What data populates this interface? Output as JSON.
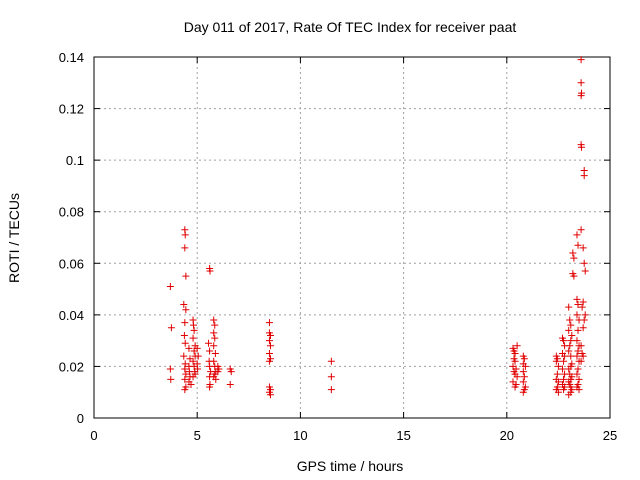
{
  "chart_data": {
    "type": "scatter",
    "title": "Day 011 of 2017, Rate Of TEC Index for receiver paat",
    "xlabel": "GPS time / hours",
    "ylabel": "ROTI / TECUs",
    "xlim": [
      0,
      25
    ],
    "ylim": [
      0,
      0.14
    ],
    "xticks": [
      0,
      5,
      10,
      15,
      20,
      25
    ],
    "xtick_labels": [
      "0",
      "5",
      "10",
      "15",
      "20",
      "25"
    ],
    "yticks": [
      0,
      0.02,
      0.04,
      0.06,
      0.08,
      0.1,
      0.12,
      0.14
    ],
    "ytick_labels": [
      "0",
      "0.02",
      "0.04",
      "0.06",
      "0.08",
      "0.1",
      "0.12",
      "0.14"
    ],
    "grid": true,
    "marker": "+",
    "color": "#e00000",
    "points": [
      [
        3.7,
        0.051
      ],
      [
        3.75,
        0.035
      ],
      [
        3.7,
        0.019
      ],
      [
        3.72,
        0.015
      ],
      [
        4.4,
        0.073
      ],
      [
        4.42,
        0.071
      ],
      [
        4.4,
        0.066
      ],
      [
        4.45,
        0.055
      ],
      [
        4.35,
        0.044
      ],
      [
        4.45,
        0.042
      ],
      [
        4.4,
        0.037
      ],
      [
        4.38,
        0.032
      ],
      [
        4.42,
        0.029
      ],
      [
        4.35,
        0.024
      ],
      [
        4.42,
        0.021
      ],
      [
        4.4,
        0.019
      ],
      [
        4.45,
        0.017
      ],
      [
        4.4,
        0.015
      ],
      [
        4.45,
        0.012
      ],
      [
        4.4,
        0.011
      ],
      [
        4.6,
        0.027
      ],
      [
        4.65,
        0.023
      ],
      [
        4.6,
        0.02
      ],
      [
        4.62,
        0.018
      ],
      [
        4.65,
        0.016
      ],
      [
        4.6,
        0.014
      ],
      [
        4.7,
        0.013
      ],
      [
        4.8,
        0.038
      ],
      [
        4.82,
        0.036
      ],
      [
        4.85,
        0.034
      ],
      [
        4.8,
        0.031
      ],
      [
        4.9,
        0.028
      ],
      [
        4.85,
        0.026
      ],
      [
        4.9,
        0.024
      ],
      [
        4.8,
        0.022
      ],
      [
        4.85,
        0.02
      ],
      [
        4.88,
        0.018
      ],
      [
        4.9,
        0.017
      ],
      [
        4.8,
        0.016
      ],
      [
        5.0,
        0.027
      ],
      [
        5.05,
        0.024
      ],
      [
        5.0,
        0.021
      ],
      [
        5.02,
        0.019
      ],
      [
        5.6,
        0.058
      ],
      [
        5.62,
        0.057
      ],
      [
        5.55,
        0.029
      ],
      [
        5.6,
        0.026
      ],
      [
        5.58,
        0.022
      ],
      [
        5.6,
        0.02
      ],
      [
        5.65,
        0.018
      ],
      [
        5.6,
        0.016
      ],
      [
        5.62,
        0.013
      ],
      [
        5.6,
        0.012
      ],
      [
        5.8,
        0.038
      ],
      [
        5.85,
        0.036
      ],
      [
        5.8,
        0.033
      ],
      [
        5.85,
        0.031
      ],
      [
        5.8,
        0.028
      ],
      [
        5.88,
        0.025
      ],
      [
        5.8,
        0.022
      ],
      [
        5.85,
        0.02
      ],
      [
        5.9,
        0.018
      ],
      [
        5.85,
        0.017
      ],
      [
        5.8,
        0.016
      ],
      [
        5.9,
        0.015
      ],
      [
        6.0,
        0.02
      ],
      [
        6.05,
        0.019
      ],
      [
        6.0,
        0.018
      ],
      [
        6.6,
        0.019
      ],
      [
        6.65,
        0.018
      ],
      [
        6.6,
        0.013
      ],
      [
        8.5,
        0.037
      ],
      [
        8.5,
        0.033
      ],
      [
        8.55,
        0.032
      ],
      [
        8.5,
        0.03
      ],
      [
        8.55,
        0.028
      ],
      [
        8.5,
        0.025
      ],
      [
        8.55,
        0.023
      ],
      [
        8.5,
        0.022
      ],
      [
        8.5,
        0.012
      ],
      [
        8.55,
        0.011
      ],
      [
        8.5,
        0.01
      ],
      [
        8.55,
        0.009
      ],
      [
        11.5,
        0.022
      ],
      [
        11.5,
        0.016
      ],
      [
        11.5,
        0.011
      ],
      [
        20.3,
        0.027
      ],
      [
        20.35,
        0.026
      ],
      [
        20.4,
        0.025
      ],
      [
        20.5,
        0.028
      ],
      [
        20.35,
        0.023
      ],
      [
        20.4,
        0.022
      ],
      [
        20.3,
        0.02
      ],
      [
        20.45,
        0.019
      ],
      [
        20.35,
        0.018
      ],
      [
        20.4,
        0.017
      ],
      [
        20.5,
        0.016
      ],
      [
        20.3,
        0.014
      ],
      [
        20.45,
        0.013
      ],
      [
        20.4,
        0.012
      ],
      [
        20.8,
        0.024
      ],
      [
        20.85,
        0.023
      ],
      [
        20.8,
        0.021
      ],
      [
        20.9,
        0.02
      ],
      [
        20.8,
        0.018
      ],
      [
        20.85,
        0.016
      ],
      [
        20.8,
        0.014
      ],
      [
        20.9,
        0.012
      ],
      [
        20.85,
        0.011
      ],
      [
        20.8,
        0.01
      ],
      [
        22.4,
        0.024
      ],
      [
        22.45,
        0.023
      ],
      [
        22.4,
        0.022
      ],
      [
        22.5,
        0.02
      ],
      [
        22.45,
        0.017
      ],
      [
        22.4,
        0.015
      ],
      [
        22.5,
        0.014
      ],
      [
        22.45,
        0.012
      ],
      [
        22.4,
        0.011
      ],
      [
        22.5,
        0.01
      ],
      [
        22.7,
        0.031
      ],
      [
        22.75,
        0.03
      ],
      [
        22.8,
        0.028
      ],
      [
        22.7,
        0.025
      ],
      [
        22.8,
        0.024
      ],
      [
        22.75,
        0.022
      ],
      [
        22.7,
        0.019
      ],
      [
        22.8,
        0.017
      ],
      [
        22.75,
        0.015
      ],
      [
        22.7,
        0.013
      ],
      [
        22.8,
        0.012
      ],
      [
        22.75,
        0.011
      ],
      [
        23.0,
        0.043
      ],
      [
        23.05,
        0.038
      ],
      [
        23.1,
        0.036
      ],
      [
        23.0,
        0.034
      ],
      [
        23.15,
        0.032
      ],
      [
        23.1,
        0.03
      ],
      [
        23.05,
        0.028
      ],
      [
        23.0,
        0.026
      ],
      [
        23.1,
        0.024
      ],
      [
        23.15,
        0.021
      ],
      [
        23.1,
        0.02
      ],
      [
        23.0,
        0.019
      ],
      [
        23.05,
        0.017
      ],
      [
        23.15,
        0.016
      ],
      [
        23.1,
        0.015
      ],
      [
        23.0,
        0.014
      ],
      [
        23.05,
        0.013
      ],
      [
        23.1,
        0.012
      ],
      [
        23.15,
        0.011
      ],
      [
        23.1,
        0.01
      ],
      [
        23.0,
        0.009
      ],
      [
        23.2,
        0.064
      ],
      [
        23.25,
        0.062
      ],
      [
        23.2,
        0.056
      ],
      [
        23.25,
        0.055
      ],
      [
        23.4,
        0.071
      ],
      [
        23.45,
        0.067
      ],
      [
        23.4,
        0.046
      ],
      [
        23.45,
        0.044
      ],
      [
        23.4,
        0.04
      ],
      [
        23.5,
        0.038
      ],
      [
        23.45,
        0.034
      ],
      [
        23.4,
        0.03
      ],
      [
        23.5,
        0.028
      ],
      [
        23.45,
        0.026
      ],
      [
        23.4,
        0.024
      ],
      [
        23.5,
        0.022
      ],
      [
        23.45,
        0.019
      ],
      [
        23.4,
        0.017
      ],
      [
        23.5,
        0.015
      ],
      [
        23.45,
        0.013
      ],
      [
        23.4,
        0.012
      ],
      [
        23.5,
        0.011
      ],
      [
        23.6,
        0.139
      ],
      [
        23.6,
        0.13
      ],
      [
        23.62,
        0.126
      ],
      [
        23.6,
        0.125
      ],
      [
        23.6,
        0.106
      ],
      [
        23.62,
        0.105
      ],
      [
        23.75,
        0.096
      ],
      [
        23.75,
        0.094
      ],
      [
        23.6,
        0.073
      ],
      [
        23.7,
        0.066
      ],
      [
        23.75,
        0.06
      ],
      [
        23.8,
        0.057
      ],
      [
        23.7,
        0.045
      ],
      [
        23.65,
        0.043
      ],
      [
        23.8,
        0.04
      ],
      [
        23.75,
        0.038
      ],
      [
        23.7,
        0.035
      ],
      [
        23.6,
        0.028
      ],
      [
        23.65,
        0.025
      ],
      [
        23.7,
        0.024
      ],
      [
        23.6,
        0.022
      ]
    ]
  }
}
